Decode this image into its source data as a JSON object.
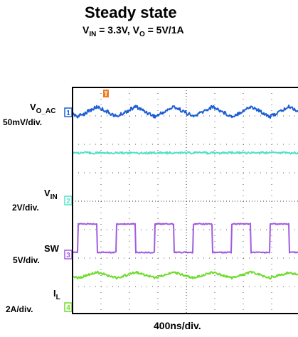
{
  "header": {
    "title": "Steady state",
    "subtitle": {
      "vin_v": "V",
      "vin_sub": "IN",
      "vin_value": " = 3.3V, ",
      "vo_v": "V",
      "vo_sub": "O",
      "vo_value": " = 5V/1A"
    }
  },
  "channels": [
    {
      "id": "1",
      "symbol": "V",
      "sub": "O_AC",
      "scale": "50mV/div.",
      "color": "#1f5fd6"
    },
    {
      "id": "2",
      "symbol": "V",
      "sub": "IN",
      "scale": "2V/div.",
      "color": "#56e0c8"
    },
    {
      "id": "3",
      "symbol": "SW",
      "sub": "",
      "scale": "5V/div.",
      "color": "#a05ce0"
    },
    {
      "id": "4",
      "symbol": "I",
      "sub": "L",
      "scale": "2A/div.",
      "color": "#6edc2c"
    }
  ],
  "trigger_marker": "T",
  "trigger_color": "#f07a20",
  "chart_data": {
    "type": "line",
    "title": "Steady state",
    "xlabel": "400ns/div.",
    "ylabel": "",
    "grid": true,
    "waveforms": {
      "sw_period_ns": 540,
      "sw_duty_fraction": 0.5,
      "ripple_shape": "sawtooth",
      "inductor_current_shape": "triangular"
    }
  }
}
